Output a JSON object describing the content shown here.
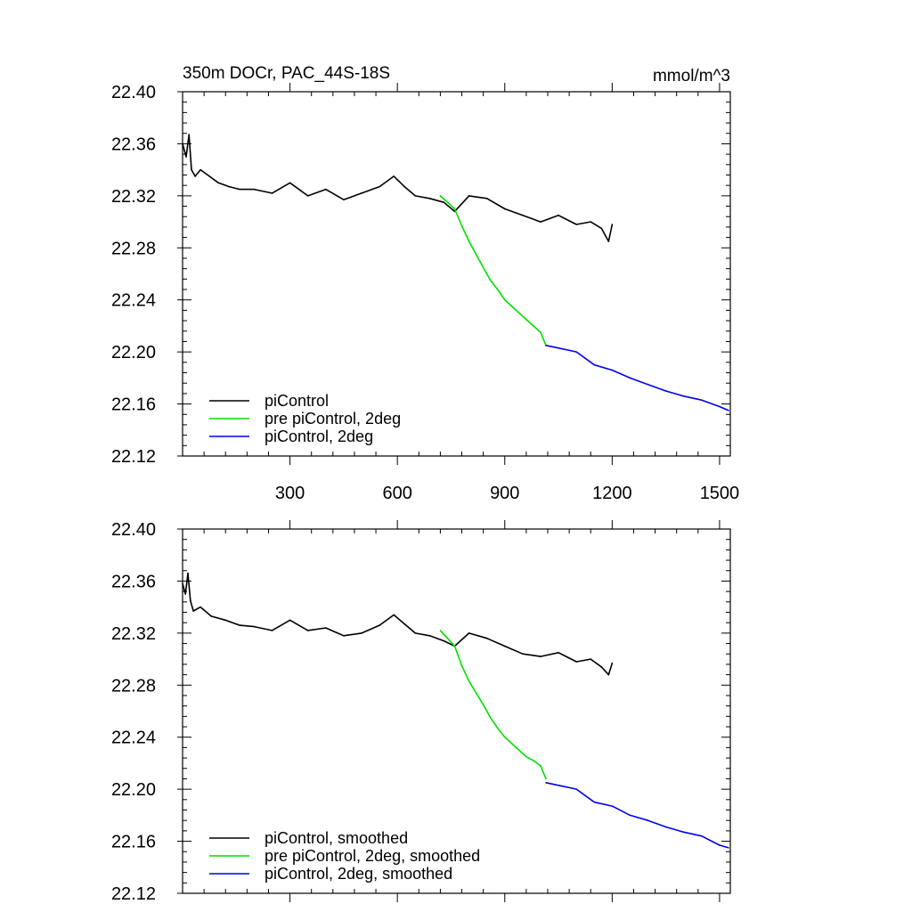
{
  "chart_data": [
    {
      "type": "line",
      "title": "350m DOCr, PAC_44S-18S",
      "units": "mmol/m^3",
      "xlabel": "",
      "ylabel": "",
      "xlim": [
        0,
        1530
      ],
      "ylim": [
        22.12,
        22.4
      ],
      "xticks": [
        300,
        600,
        900,
        1200,
        1500
      ],
      "xtick_labels": [
        "300",
        "600",
        "900",
        "1200",
        "1500"
      ],
      "yticks": [
        22.12,
        22.16,
        22.2,
        22.24,
        22.28,
        22.32,
        22.36,
        22.4
      ],
      "ytick_labels": [
        "22.12",
        "22.16",
        "22.20",
        "22.24",
        "22.28",
        "22.32",
        "22.36",
        "22.40"
      ],
      "legend_position": "bottom-left",
      "grid": false,
      "series": [
        {
          "name": "piControl",
          "color": "#000000",
          "x": [
            0,
            10,
            18,
            25,
            35,
            50,
            75,
            100,
            130,
            160,
            200,
            250,
            300,
            350,
            400,
            450,
            500,
            550,
            590,
            620,
            650,
            690,
            730,
            760,
            800,
            850,
            900,
            950,
            1000,
            1050,
            1100,
            1140,
            1170,
            1190,
            1200
          ],
          "y": [
            22.36,
            22.35,
            22.367,
            22.34,
            22.335,
            22.34,
            22.335,
            22.33,
            22.327,
            22.325,
            22.325,
            22.322,
            22.33,
            22.32,
            22.325,
            22.317,
            22.322,
            22.327,
            22.335,
            22.327,
            22.32,
            22.318,
            22.315,
            22.308,
            22.32,
            22.318,
            22.31,
            22.305,
            22.3,
            22.305,
            22.298,
            22.3,
            22.295,
            22.285,
            22.298
          ]
        },
        {
          "name": "pre piControl, 2deg",
          "color": "#00e000",
          "x": [
            720,
            740,
            760,
            780,
            800,
            820,
            840,
            860,
            880,
            900,
            920,
            940,
            960,
            980,
            1000,
            1015
          ],
          "y": [
            22.32,
            22.315,
            22.31,
            22.297,
            22.285,
            22.275,
            22.265,
            22.255,
            22.248,
            22.24,
            22.235,
            22.23,
            22.225,
            22.22,
            22.215,
            22.205
          ]
        },
        {
          "name": "piControl, 2deg",
          "color": "#0000ee",
          "x": [
            1015,
            1050,
            1100,
            1150,
            1200,
            1250,
            1300,
            1350,
            1400,
            1450,
            1500,
            1525
          ],
          "y": [
            22.205,
            22.203,
            22.2,
            22.19,
            22.186,
            22.18,
            22.175,
            22.17,
            22.166,
            22.163,
            22.158,
            22.155
          ]
        }
      ]
    },
    {
      "type": "line",
      "title": "",
      "xlabel": "",
      "ylabel": "",
      "xlim": [
        0,
        1530
      ],
      "ylim": [
        22.12,
        22.4
      ],
      "xticks": [
        300,
        600,
        900,
        1200,
        1500
      ],
      "xtick_labels": [],
      "yticks": [
        22.12,
        22.16,
        22.2,
        22.24,
        22.28,
        22.32,
        22.36,
        22.4
      ],
      "ytick_labels": [
        "22.12",
        "22.16",
        "22.20",
        "22.24",
        "22.28",
        "22.32",
        "22.36",
        "22.40"
      ],
      "legend_position": "bottom-left",
      "grid": false,
      "series": [
        {
          "name": "piControl, smoothed",
          "color": "#000000",
          "x": [
            0,
            8,
            15,
            22,
            30,
            50,
            80,
            120,
            160,
            200,
            250,
            300,
            350,
            400,
            450,
            500,
            550,
            590,
            620,
            650,
            690,
            730,
            760,
            800,
            850,
            900,
            950,
            1000,
            1050,
            1100,
            1140,
            1170,
            1190,
            1200
          ],
          "y": [
            22.358,
            22.35,
            22.366,
            22.345,
            22.337,
            22.34,
            22.333,
            22.33,
            22.326,
            22.325,
            22.322,
            22.33,
            22.322,
            22.324,
            22.318,
            22.32,
            22.326,
            22.334,
            22.327,
            22.32,
            22.318,
            22.314,
            22.31,
            22.32,
            22.316,
            22.31,
            22.304,
            22.302,
            22.305,
            22.298,
            22.3,
            22.294,
            22.288,
            22.297
          ]
        },
        {
          "name": "pre piControl, 2deg, smoothed",
          "color": "#00e000",
          "x": [
            720,
            740,
            760,
            780,
            800,
            820,
            840,
            860,
            880,
            900,
            920,
            940,
            960,
            980,
            1000,
            1015
          ],
          "y": [
            22.322,
            22.316,
            22.31,
            22.295,
            22.283,
            22.274,
            22.265,
            22.255,
            22.247,
            22.24,
            22.235,
            22.23,
            22.225,
            22.222,
            22.218,
            22.208
          ]
        },
        {
          "name": "piControl, 2deg, smoothed",
          "color": "#0000ee",
          "x": [
            1015,
            1050,
            1100,
            1150,
            1200,
            1250,
            1300,
            1350,
            1400,
            1450,
            1500,
            1525
          ],
          "y": [
            22.205,
            22.203,
            22.2,
            22.19,
            22.187,
            22.18,
            22.176,
            22.171,
            22.167,
            22.164,
            22.157,
            22.155
          ]
        }
      ]
    }
  ]
}
